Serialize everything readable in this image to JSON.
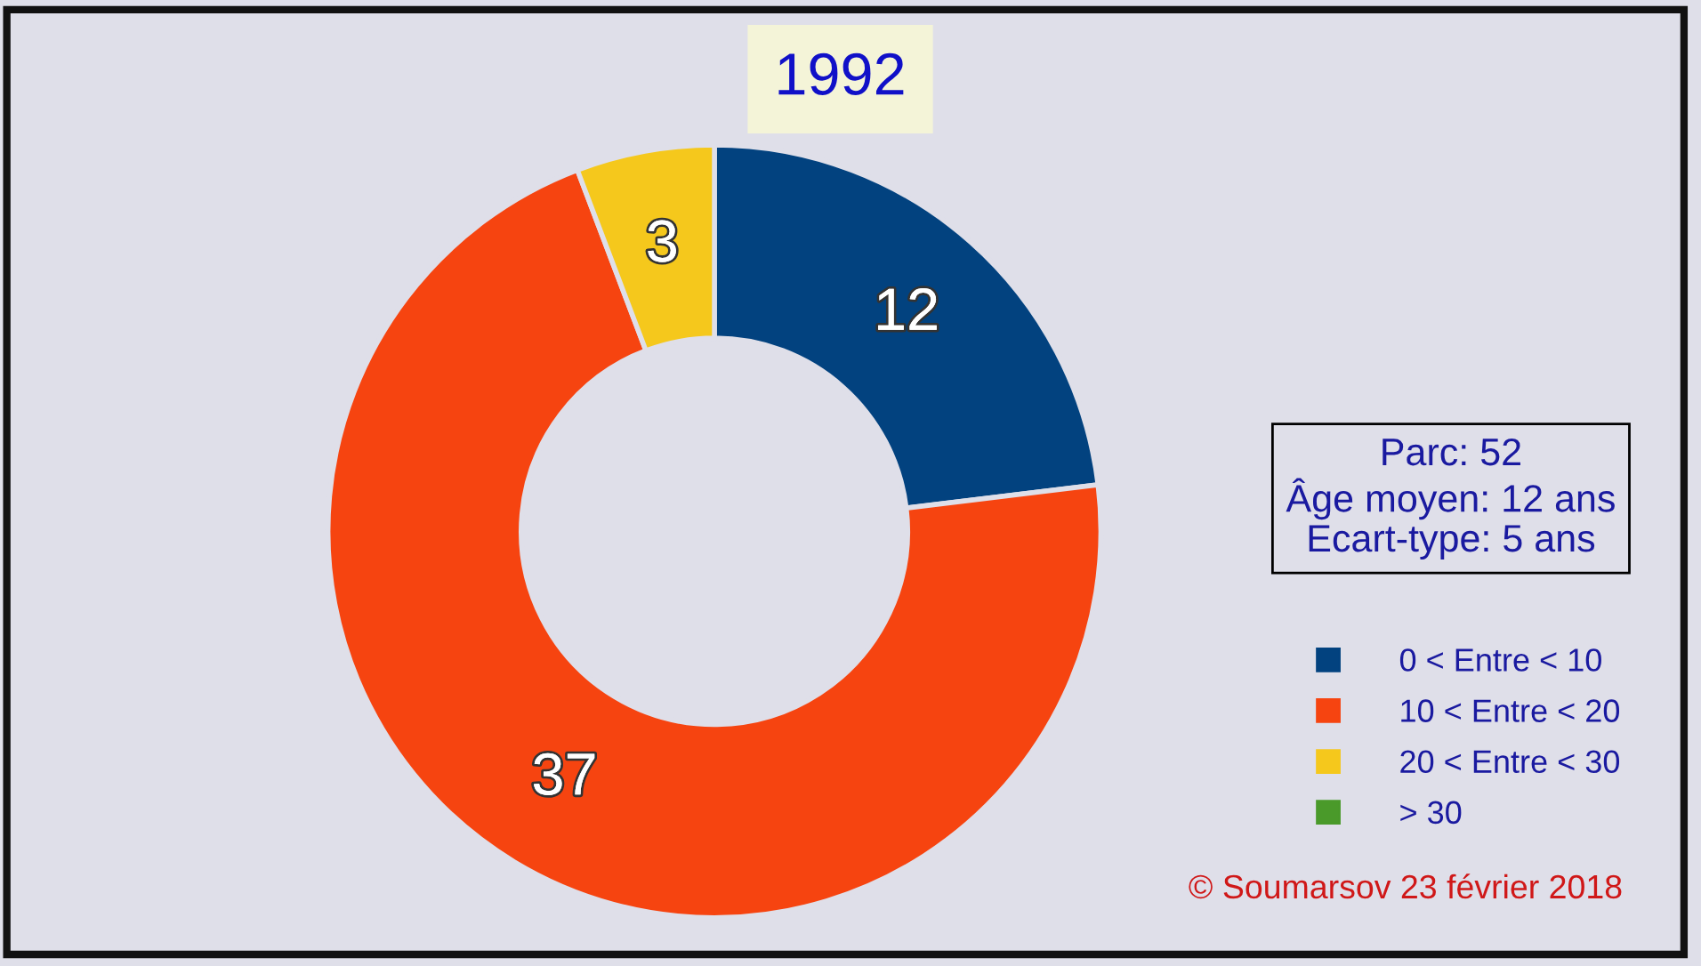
{
  "chart_data": {
    "type": "donut",
    "title": "1992",
    "categories": [
      "0 < Entre < 10",
      "10 < Entre < 20",
      "20 < Entre < 30",
      "> 30"
    ],
    "values": [
      12,
      37,
      3,
      0
    ],
    "colors": [
      "#02427f",
      "#f64410",
      "#f5c81c",
      "#4a9a2a"
    ],
    "value_labels": [
      "12",
      "37",
      "3",
      null
    ],
    "legend": "right",
    "annotations": [
      "Parc: 52\nÂge moyen: 12 ans\nEcart-type: 5 ans",
      "© Soumarsov 23 février 2018"
    ]
  }
}
